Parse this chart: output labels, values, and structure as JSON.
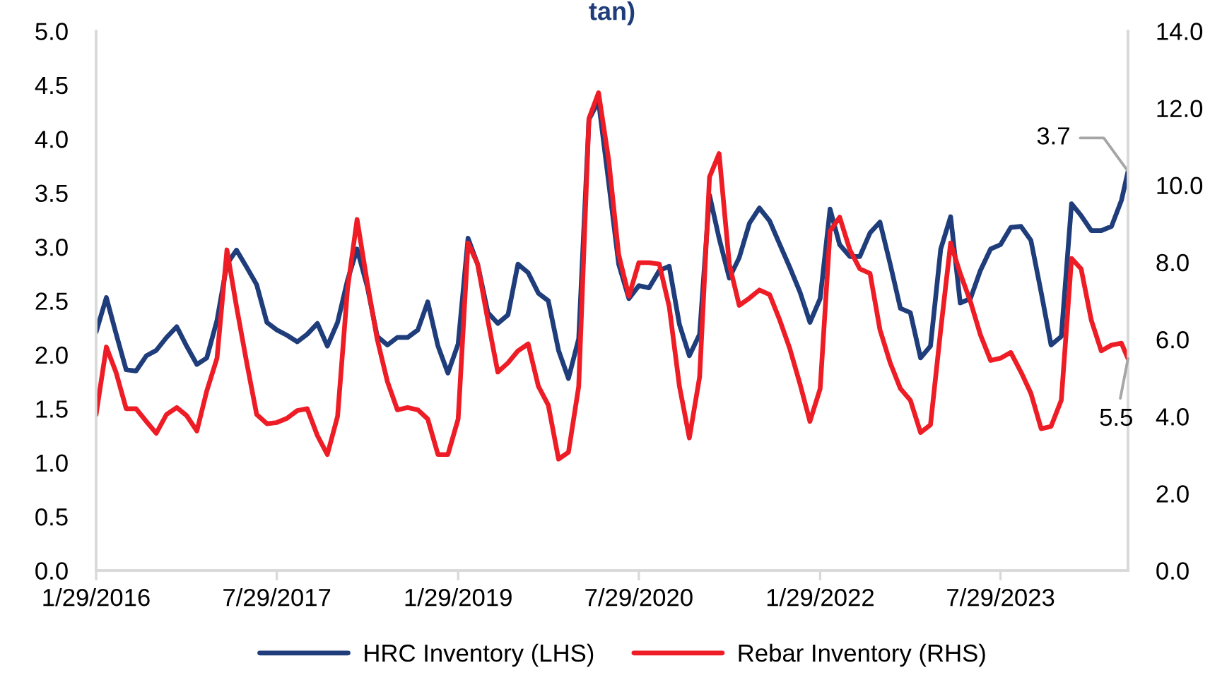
{
  "chart_data": {
    "type": "line",
    "title": "tan)",
    "x": [
      "2016-01-29",
      "2016-02-29",
      "2016-03-29",
      "2016-04-29",
      "2016-05-29",
      "2016-06-29",
      "2016-07-29",
      "2016-08-29",
      "2016-09-29",
      "2016-10-29",
      "2016-11-29",
      "2016-12-29",
      "2017-01-29",
      "2017-02-28",
      "2017-03-29",
      "2017-04-29",
      "2017-05-29",
      "2017-06-29",
      "2017-07-29",
      "2017-08-29",
      "2017-09-29",
      "2017-10-29",
      "2017-11-29",
      "2017-12-29",
      "2018-01-29",
      "2018-02-28",
      "2018-03-29",
      "2018-04-29",
      "2018-05-29",
      "2018-06-29",
      "2018-07-29",
      "2018-08-29",
      "2018-09-29",
      "2018-10-29",
      "2018-11-29",
      "2018-12-29",
      "2019-01-29",
      "2019-02-28",
      "2019-03-29",
      "2019-04-29",
      "2019-05-29",
      "2019-06-29",
      "2019-07-29",
      "2019-08-29",
      "2019-09-29",
      "2019-10-29",
      "2019-11-29",
      "2019-12-29",
      "2020-01-29",
      "2020-02-29",
      "2020-03-29",
      "2020-04-29",
      "2020-05-29",
      "2020-06-29",
      "2020-07-29",
      "2020-08-29",
      "2020-09-29",
      "2020-10-29",
      "2020-11-29",
      "2020-12-29",
      "2021-01-29",
      "2021-02-28",
      "2021-03-29",
      "2021-04-29",
      "2021-05-29",
      "2021-06-29",
      "2021-07-29",
      "2021-08-29",
      "2021-09-29",
      "2021-10-29",
      "2021-11-29",
      "2021-12-29",
      "2022-01-29",
      "2022-02-28",
      "2022-03-29",
      "2022-04-29",
      "2022-05-29",
      "2022-06-29",
      "2022-07-29",
      "2022-08-29",
      "2022-09-29",
      "2022-10-29",
      "2022-11-29",
      "2022-12-29",
      "2023-01-29",
      "2023-02-28",
      "2023-03-29",
      "2023-04-29",
      "2023-05-29",
      "2023-06-29",
      "2023-07-29",
      "2023-08-29",
      "2023-09-29",
      "2023-10-29",
      "2023-11-29",
      "2023-12-29",
      "2024-01-29",
      "2024-02-29",
      "2024-03-29",
      "2024-04-29",
      "2024-05-29",
      "2024-06-29",
      "2024-07-29",
      "2024-08-18"
    ],
    "series": [
      {
        "name": "HRC Inventory (LHS)",
        "color": "#1f3d7a",
        "values": [
          2.21,
          2.53,
          2.2,
          1.86,
          1.85,
          1.99,
          2.04,
          2.16,
          2.26,
          2.08,
          1.91,
          1.97,
          2.32,
          2.84,
          2.97,
          2.81,
          2.65,
          2.3,
          2.23,
          2.18,
          2.12,
          2.19,
          2.29,
          2.08,
          2.3,
          2.69,
          2.98,
          2.63,
          2.17,
          2.09,
          2.16,
          2.16,
          2.23,
          2.49,
          2.08,
          1.83,
          2.1,
          3.08,
          2.84,
          2.39,
          2.29,
          2.37,
          2.84,
          2.76,
          2.57,
          2.5,
          2.04,
          1.78,
          2.15,
          4.18,
          4.35,
          3.59,
          2.84,
          2.52,
          2.64,
          2.62,
          2.78,
          2.82,
          2.28,
          1.99,
          2.19,
          3.48,
          3.08,
          2.71,
          2.9,
          3.22,
          3.36,
          3.24,
          3.02,
          2.81,
          2.58,
          2.3,
          2.52,
          3.35,
          3.02,
          2.91,
          2.91,
          3.13,
          3.23,
          2.84,
          2.43,
          2.39,
          1.97,
          2.08,
          2.98,
          3.28,
          2.48,
          2.52,
          2.78,
          2.98,
          3.02,
          3.18,
          3.19,
          3.06,
          2.58,
          2.09,
          2.17,
          3.4,
          3.29,
          3.15,
          3.15,
          3.19,
          3.43,
          3.7
        ],
        "value_labels": [
          null,
          null,
          null,
          null,
          null,
          null,
          null,
          null,
          null,
          null,
          null,
          null,
          null,
          null,
          null,
          null,
          null,
          null,
          null,
          null,
          null,
          null,
          null,
          null,
          null,
          null,
          null,
          null,
          null,
          null,
          null,
          null,
          null,
          null,
          null,
          null,
          null,
          null,
          null,
          null,
          null,
          null,
          null,
          null,
          null,
          null,
          null,
          null,
          null,
          null,
          null,
          null,
          null,
          null,
          null,
          null,
          null,
          null,
          null,
          null,
          null,
          null,
          null,
          null,
          null,
          null,
          null,
          null,
          null,
          null,
          null,
          null,
          null,
          null,
          null,
          null,
          null,
          null,
          null,
          null,
          null,
          null,
          null,
          null,
          null,
          null,
          null,
          null,
          null,
          null,
          null,
          null,
          null,
          null,
          null,
          null,
          null,
          null,
          null,
          null,
          null,
          null,
          null,
          "3.7"
        ]
      },
      {
        "name": "Rebar Inventory (RHS)",
        "color": "#ee1c25",
        "axis": "y2",
        "values": [
          4.05,
          5.8,
          5.15,
          4.2,
          4.2,
          3.87,
          3.56,
          4.05,
          4.23,
          4.02,
          3.62,
          4.66,
          5.51,
          8.32,
          6.85,
          5.39,
          4.05,
          3.81,
          3.84,
          3.95,
          4.15,
          4.2,
          3.5,
          3.01,
          4.0,
          7.3,
          9.11,
          7.46,
          6.0,
          4.9,
          4.17,
          4.23,
          4.17,
          3.93,
          3.01,
          3.01,
          3.93,
          8.5,
          7.95,
          6.49,
          5.15,
          5.39,
          5.7,
          5.88,
          4.78,
          4.29,
          2.89,
          3.07,
          4.78,
          11.73,
          12.4,
          10.64,
          8.2,
          7.12,
          7.99,
          7.99,
          7.95,
          6.85,
          4.78,
          3.44,
          5.02,
          10.21,
          10.82,
          7.95,
          6.88,
          7.07,
          7.28,
          7.16,
          6.49,
          5.76,
          4.84,
          3.87,
          4.72,
          8.81,
          9.17,
          8.32,
          7.83,
          7.71,
          6.25,
          5.39,
          4.72,
          4.42,
          3.58,
          3.78,
          6.25,
          8.5,
          7.71,
          6.98,
          6.12,
          5.45,
          5.51,
          5.66,
          5.15,
          4.6,
          3.68,
          3.74,
          4.42,
          8.1,
          7.83,
          6.49,
          5.7,
          5.85,
          5.9,
          5.5
        ],
        "value_labels": [
          null,
          null,
          null,
          null,
          null,
          null,
          null,
          null,
          null,
          null,
          null,
          null,
          null,
          null,
          null,
          null,
          null,
          null,
          null,
          null,
          null,
          null,
          null,
          null,
          null,
          null,
          null,
          null,
          null,
          null,
          null,
          null,
          null,
          null,
          null,
          null,
          null,
          null,
          null,
          null,
          null,
          null,
          null,
          null,
          null,
          null,
          null,
          null,
          null,
          null,
          null,
          null,
          null,
          null,
          null,
          null,
          null,
          null,
          null,
          null,
          null,
          null,
          null,
          null,
          null,
          null,
          null,
          null,
          null,
          null,
          null,
          null,
          null,
          null,
          null,
          null,
          null,
          null,
          null,
          null,
          null,
          null,
          null,
          null,
          null,
          null,
          null,
          null,
          null,
          null,
          null,
          null,
          null,
          null,
          null,
          null,
          null,
          null,
          null,
          null,
          null,
          null,
          null,
          "5.5"
        ]
      }
    ],
    "xlim": [
      "2016-01-29",
      "2024-08-18"
    ],
    "xticks": [
      {
        "value": "2016-01-29",
        "label": "1/29/2016"
      },
      {
        "value": "2017-07-29",
        "label": "7/29/2017"
      },
      {
        "value": "2019-01-29",
        "label": "1/29/2019"
      },
      {
        "value": "2020-07-29",
        "label": "7/29/2020"
      },
      {
        "value": "2022-01-29",
        "label": "1/29/2022"
      },
      {
        "value": "2023-07-29",
        "label": "7/29/2023"
      }
    ],
    "ylim": [
      0,
      5
    ],
    "yticks": [
      {
        "value": 0,
        "label": "0.0"
      },
      {
        "value": 0.5,
        "label": "0.5"
      },
      {
        "value": 1,
        "label": "1.0"
      },
      {
        "value": 1.5,
        "label": "1.5"
      },
      {
        "value": 2,
        "label": "2.0"
      },
      {
        "value": 2.5,
        "label": "2.5"
      },
      {
        "value": 3,
        "label": "3.0"
      },
      {
        "value": 3.5,
        "label": "3.5"
      },
      {
        "value": 4,
        "label": "4.0"
      },
      {
        "value": 4.5,
        "label": "4.5"
      },
      {
        "value": 5,
        "label": "5.0"
      }
    ],
    "y2lim": [
      0,
      14
    ],
    "y2ticks": [
      {
        "value": 0,
        "label": "0.0"
      },
      {
        "value": 2,
        "label": "2.0"
      },
      {
        "value": 4,
        "label": "4.0"
      },
      {
        "value": 6,
        "label": "6.0"
      },
      {
        "value": 8,
        "label": "8.0"
      },
      {
        "value": 10,
        "label": "10.0"
      },
      {
        "value": 12,
        "label": "12.0"
      },
      {
        "value": 14,
        "label": "14.0"
      }
    ],
    "legend": "bottom",
    "grid": false,
    "marker": "none",
    "line_style": "solid"
  }
}
